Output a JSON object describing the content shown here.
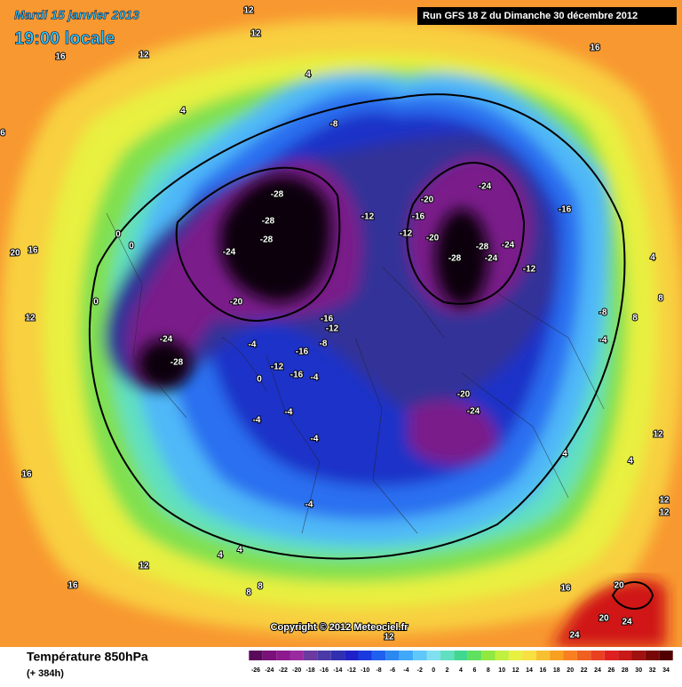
{
  "header": {
    "date": "Mardi 15 janvier 2013",
    "time": "19:00 locale",
    "run": "Run GFS 18 Z du Dimanche 30 décembre 2012"
  },
  "footer": {
    "copyright": "Copyright © 2012 Meteociel.fr",
    "variable": "Température 850hPa",
    "lead": "(+ 384h)"
  },
  "scale": {
    "ticks": [
      -26,
      -24,
      -22,
      -20,
      -18,
      -16,
      -14,
      -12,
      -10,
      -8,
      -6,
      -4,
      -2,
      0,
      2,
      4,
      6,
      8,
      10,
      12,
      14,
      16,
      18,
      20,
      22,
      24,
      26,
      28,
      30,
      32,
      34
    ],
    "colors": [
      "#5a0a5a",
      "#7a107a",
      "#8c1a8c",
      "#9a2aa0",
      "#6a3aa0",
      "#4a3aa8",
      "#3030b0",
      "#2020c8",
      "#1a3ae0",
      "#2060f0",
      "#2a88f0",
      "#40a8f8",
      "#60c8f8",
      "#80e0f0",
      "#60e0c0",
      "#40d890",
      "#60e060",
      "#90e840",
      "#c0f040",
      "#e8f040",
      "#f8e040",
      "#f8c030",
      "#f8a020",
      "#f88020",
      "#f06020",
      "#e84020",
      "#e02020",
      "#c81818",
      "#a01010",
      "#780808",
      "#500000"
    ]
  },
  "contour_labels": [
    "12",
    "12",
    "16",
    "12",
    "4",
    "4",
    "6",
    "16",
    "-8",
    "-28",
    "-28",
    "-28",
    "-24",
    "0",
    "0",
    "20",
    "16",
    "0",
    "12",
    "-20",
    "-24",
    "-28",
    "-20",
    "-16",
    "-12",
    "-12",
    "-20",
    "-24",
    "-16",
    "-24",
    "-28",
    "-28",
    "-24",
    "-12",
    "-16",
    "-12",
    "-4",
    "-8",
    "-16",
    "-12",
    "0",
    "-16",
    "-4",
    "-8",
    "8",
    "-4",
    "-20",
    "-24",
    "-4",
    "-4",
    "-4",
    "12",
    "4",
    "4",
    "16",
    "12",
    "12",
    "-4",
    "4",
    "4",
    "12",
    "16",
    "16",
    "20",
    "8",
    "8",
    "20",
    "24",
    "24",
    "12",
    "4",
    "8"
  ]
}
